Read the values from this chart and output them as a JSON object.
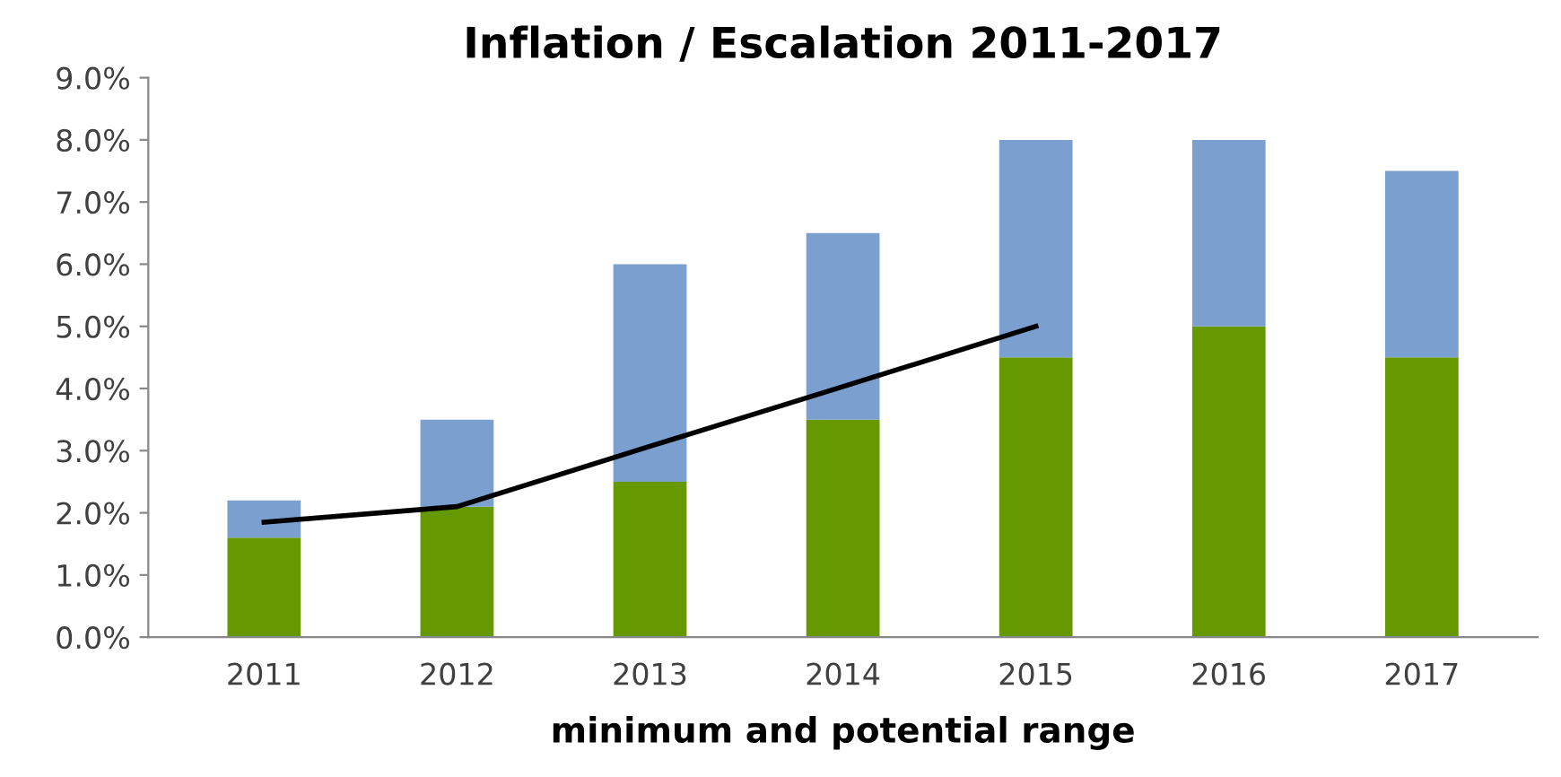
{
  "chart_data": {
    "type": "bar",
    "title": "Inflation / Escalation 2011-2017",
    "xlabel": "minimum and potential range",
    "categories": [
      "2011",
      "2012",
      "2013",
      "2014",
      "2015",
      "2016",
      "2017"
    ],
    "stacked": true,
    "series": [
      {
        "color": "#669900",
        "values": [
          1.6,
          2.1,
          2.5,
          3.5,
          4.5,
          5.0,
          4.5
        ]
      },
      {
        "color": "#7ba0cf",
        "values": [
          0.6,
          1.4,
          3.5,
          3.0,
          3.5,
          3.0,
          3.0
        ]
      },
      {
        "type": "line",
        "color": "#000000",
        "values": [
          1.85,
          2.1,
          3.07,
          4.03,
          5.0,
          null,
          null
        ]
      }
    ],
    "ylim": [
      0,
      9
    ],
    "yticks": [
      {
        "value": 0,
        "label": "0.0%"
      },
      {
        "value": 1,
        "label": "1.0%"
      },
      {
        "value": 2,
        "label": "2.0%"
      },
      {
        "value": 3,
        "label": "3.0%"
      },
      {
        "value": 4,
        "label": "4.0%"
      },
      {
        "value": 5,
        "label": "5.0%"
      },
      {
        "value": 6,
        "label": "6.0%"
      },
      {
        "value": 7,
        "label": "7.0%"
      },
      {
        "value": 8,
        "label": "8.0%"
      },
      {
        "value": 9,
        "label": "9.0%"
      }
    ],
    "grid": false,
    "legend": false
  }
}
